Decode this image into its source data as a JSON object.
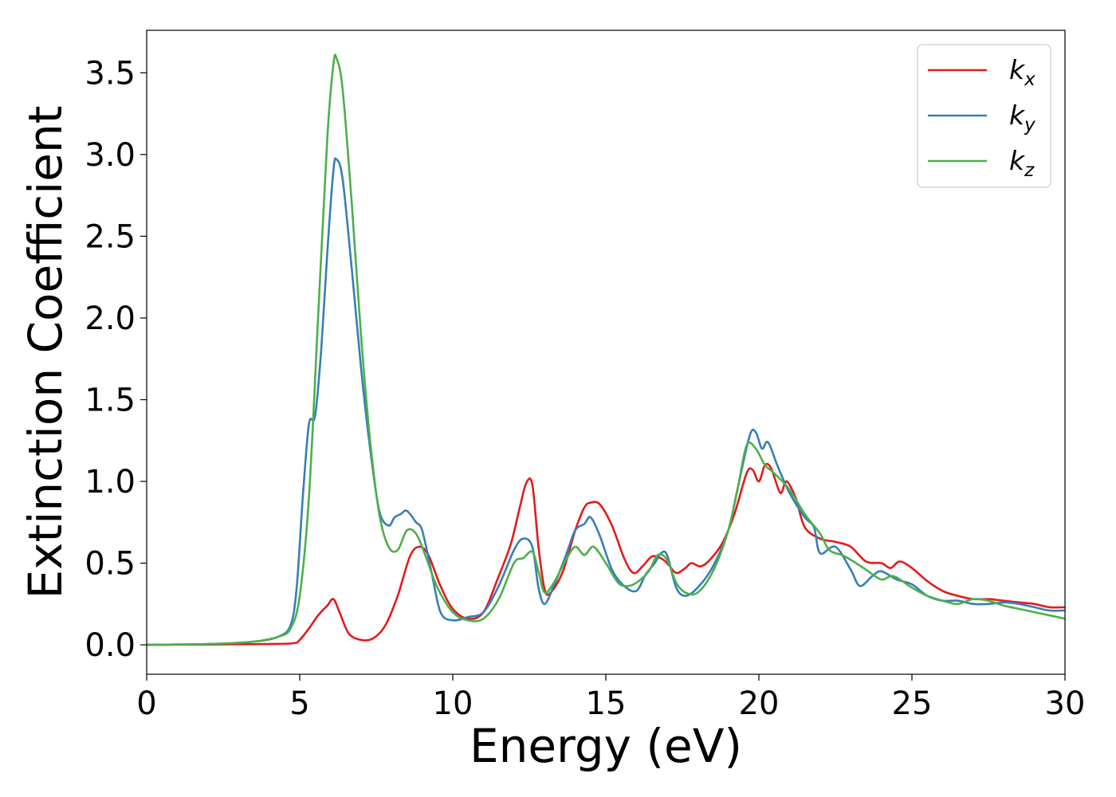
{
  "chart_data": {
    "type": "line",
    "title": "",
    "xlabel": "Energy (eV)",
    "ylabel": "Extinction Coefficient",
    "xlim": [
      0,
      30
    ],
    "ylim": [
      -0.18,
      3.76
    ],
    "xticks": [
      0,
      5,
      10,
      15,
      20,
      25,
      30
    ],
    "xtick_labels": [
      "0",
      "5",
      "10",
      "15",
      "20",
      "25",
      "30"
    ],
    "yticks": [
      0.0,
      0.5,
      1.0,
      1.5,
      2.0,
      2.5,
      3.0,
      3.5
    ],
    "ytick_labels": [
      "0.0",
      "0.5",
      "1.0",
      "1.5",
      "2.0",
      "2.5",
      "3.0",
      "3.5"
    ],
    "grid": false,
    "legend_position": "top-right",
    "series": [
      {
        "name": "k_x",
        "label_main": "k",
        "label_sub": "x",
        "color": "#e41a1c",
        "x": [
          0,
          2,
          4,
          4.8,
          5.0,
          5.3,
          5.6,
          5.9,
          6.1,
          6.3,
          6.6,
          7.0,
          7.4,
          7.8,
          8.2,
          8.6,
          8.9,
          9.2,
          9.6,
          10.0,
          10.5,
          11.0,
          11.5,
          11.9,
          12.2,
          12.4,
          12.6,
          12.8,
          13.0,
          13.2,
          13.6,
          14.0,
          14.3,
          14.5,
          14.8,
          15.2,
          15.6,
          15.9,
          16.2,
          16.5,
          16.8,
          17.0,
          17.3,
          17.6,
          17.8,
          18.1,
          18.4,
          18.8,
          19.2,
          19.6,
          19.8,
          20.0,
          20.2,
          20.4,
          20.7,
          20.9,
          21.2,
          21.5,
          22.0,
          22.5,
          23.0,
          23.5,
          24.0,
          24.3,
          24.6,
          25.0,
          25.5,
          26.0,
          26.5,
          27.0,
          27.5,
          28.0,
          28.5,
          29.0,
          29.5,
          30.0
        ],
        "values": [
          0.0,
          0.002,
          0.005,
          0.01,
          0.03,
          0.1,
          0.18,
          0.24,
          0.28,
          0.2,
          0.07,
          0.03,
          0.04,
          0.12,
          0.3,
          0.54,
          0.6,
          0.55,
          0.36,
          0.22,
          0.16,
          0.2,
          0.42,
          0.62,
          0.85,
          0.99,
          0.98,
          0.6,
          0.34,
          0.32,
          0.45,
          0.7,
          0.84,
          0.87,
          0.86,
          0.73,
          0.53,
          0.44,
          0.48,
          0.54,
          0.53,
          0.5,
          0.44,
          0.47,
          0.5,
          0.48,
          0.52,
          0.62,
          0.8,
          1.05,
          1.07,
          1.0,
          1.1,
          1.08,
          0.93,
          1.0,
          0.9,
          0.72,
          0.65,
          0.63,
          0.6,
          0.51,
          0.5,
          0.47,
          0.51,
          0.47,
          0.39,
          0.33,
          0.3,
          0.28,
          0.28,
          0.27,
          0.26,
          0.25,
          0.23,
          0.23
        ]
      },
      {
        "name": "k_y",
        "label_main": "k",
        "label_sub": "y",
        "color": "#377eb8",
        "x": [
          0,
          2,
          3.5,
          4.3,
          4.7,
          4.9,
          5.1,
          5.3,
          5.5,
          5.7,
          5.9,
          6.1,
          6.2,
          6.4,
          6.7,
          7.0,
          7.3,
          7.6,
          7.9,
          8.1,
          8.3,
          8.5,
          8.8,
          9.0,
          9.3,
          9.6,
          10.0,
          10.5,
          11.0,
          11.5,
          12.0,
          12.3,
          12.6,
          12.8,
          13.0,
          13.3,
          13.7,
          14.0,
          14.3,
          14.5,
          14.8,
          15.2,
          15.6,
          16.0,
          16.3,
          16.6,
          16.8,
          17.0,
          17.3,
          17.6,
          18.0,
          18.5,
          19.0,
          19.3,
          19.7,
          19.9,
          20.1,
          20.3,
          20.6,
          21.0,
          21.5,
          21.8,
          22.0,
          22.5,
          23.0,
          23.3,
          23.7,
          24.0,
          24.5,
          25.0,
          25.5,
          26.0,
          26.5,
          27.0,
          27.5,
          28.0,
          28.5,
          29.0,
          29.5,
          30.0
        ],
        "values": [
          0.0,
          0.005,
          0.02,
          0.05,
          0.12,
          0.35,
          0.9,
          1.35,
          1.4,
          1.8,
          2.4,
          2.9,
          2.97,
          2.85,
          2.3,
          1.7,
          1.2,
          0.82,
          0.73,
          0.78,
          0.8,
          0.82,
          0.75,
          0.7,
          0.45,
          0.2,
          0.15,
          0.17,
          0.2,
          0.36,
          0.58,
          0.65,
          0.6,
          0.35,
          0.25,
          0.36,
          0.55,
          0.7,
          0.74,
          0.78,
          0.67,
          0.46,
          0.36,
          0.33,
          0.43,
          0.5,
          0.56,
          0.55,
          0.35,
          0.3,
          0.35,
          0.48,
          0.7,
          0.95,
          1.28,
          1.3,
          1.2,
          1.24,
          1.1,
          0.93,
          0.78,
          0.72,
          0.56,
          0.6,
          0.46,
          0.36,
          0.42,
          0.45,
          0.4,
          0.37,
          0.3,
          0.27,
          0.27,
          0.25,
          0.25,
          0.26,
          0.25,
          0.23,
          0.21,
          0.21
        ]
      },
      {
        "name": "k_z",
        "label_main": "k",
        "label_sub": "z",
        "color": "#4daf4a",
        "x": [
          0,
          2,
          3.5,
          4.3,
          4.7,
          5.0,
          5.3,
          5.6,
          5.9,
          6.1,
          6.2,
          6.4,
          6.7,
          7.0,
          7.3,
          7.6,
          7.9,
          8.2,
          8.5,
          8.8,
          9.1,
          9.5,
          10.0,
          10.5,
          11.0,
          11.5,
          12.0,
          12.3,
          12.6,
          12.8,
          13.0,
          13.3,
          13.7,
          14.0,
          14.3,
          14.6,
          15.0,
          15.4,
          15.7,
          16.0,
          16.4,
          16.7,
          17.0,
          17.3,
          17.6,
          18.0,
          18.5,
          19.0,
          19.3,
          19.6,
          19.9,
          20.2,
          20.5,
          21.0,
          21.5,
          22.0,
          22.3,
          22.7,
          23.0,
          23.5,
          24.0,
          24.4,
          25.0,
          25.5,
          26.0,
          26.5,
          27.0,
          27.5,
          28.0,
          28.5,
          29.0,
          29.5,
          30.0
        ],
        "values": [
          0.0,
          0.005,
          0.02,
          0.05,
          0.1,
          0.3,
          0.9,
          2.0,
          3.1,
          3.55,
          3.59,
          3.4,
          2.7,
          1.9,
          1.25,
          0.8,
          0.6,
          0.58,
          0.7,
          0.68,
          0.55,
          0.35,
          0.2,
          0.15,
          0.16,
          0.28,
          0.5,
          0.53,
          0.57,
          0.45,
          0.32,
          0.38,
          0.52,
          0.6,
          0.55,
          0.6,
          0.5,
          0.38,
          0.36,
          0.38,
          0.45,
          0.55,
          0.52,
          0.38,
          0.32,
          0.32,
          0.45,
          0.7,
          0.95,
          1.22,
          1.2,
          1.1,
          1.05,
          0.95,
          0.8,
          0.68,
          0.58,
          0.55,
          0.52,
          0.46,
          0.4,
          0.42,
          0.35,
          0.3,
          0.27,
          0.25,
          0.28,
          0.27,
          0.24,
          0.22,
          0.2,
          0.18,
          0.16
        ]
      }
    ]
  }
}
